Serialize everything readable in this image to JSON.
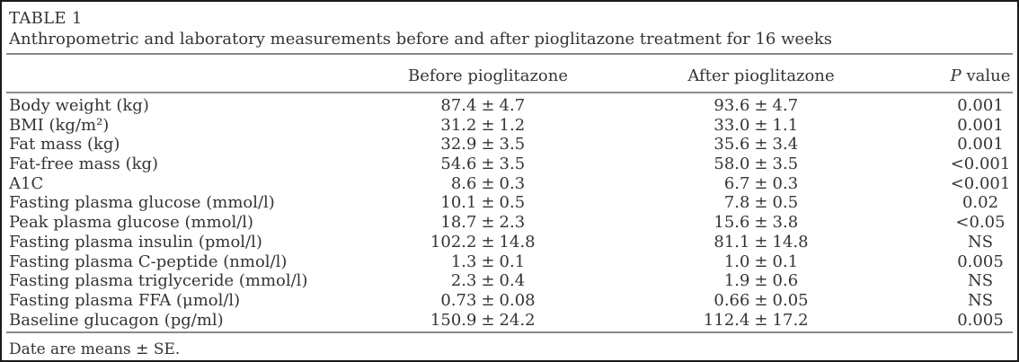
{
  "title": "TABLE 1",
  "caption": "Anthropometric and laboratory measurements before and after pioglitazone treatment for 16 weeks",
  "table": {
    "headers": {
      "before": "Before pioglitazone",
      "after": "After pioglitazone",
      "p_italic": "P",
      "p_rest": " value"
    },
    "rows": [
      {
        "label": "Body weight (kg)",
        "before": "87.4 ± 4.7",
        "after": "93.6 ± 4.7",
        "p": "0.001"
      },
      {
        "label": "BMI (kg/m²)",
        "before": "31.2 ± 1.2",
        "after": "33.0 ± 1.1",
        "p": "0.001"
      },
      {
        "label": "Fat mass (kg)",
        "before": "32.9 ± 3.5",
        "after": "35.6 ± 3.4",
        "p": "0.001"
      },
      {
        "label": "Fat-free mass (kg)",
        "before": "54.6 ± 3.5",
        "after": "58.0 ± 3.5",
        "p": "<0.001"
      },
      {
        "label": "A1C",
        "before": "8.6 ± 0.3",
        "after": "6.7 ± 0.3",
        "p": "<0.001"
      },
      {
        "label": "Fasting plasma glucose (mmol/l)",
        "before": "10.1 ± 0.5",
        "after": "7.8 ± 0.5",
        "p": "0.02"
      },
      {
        "label": "Peak plasma glucose (mmol/l)",
        "before": "18.7 ± 2.3",
        "after": "15.6 ± 3.8",
        "p": "<0.05"
      },
      {
        "label": "Fasting plasma insulin (pmol/l)",
        "before": "102.2 ± 14.8",
        "after": "81.1 ± 14.8",
        "p": "NS"
      },
      {
        "label": "Fasting plasma C-peptide (nmol/l)",
        "before": "1.3 ± 0.1",
        "after": "1.0 ± 0.1",
        "p": "0.005"
      },
      {
        "label": "Fasting plasma triglyceride (mmol/l)",
        "before": "2.3 ± 0.4",
        "after": "1.9 ± 0.6",
        "p": "NS"
      },
      {
        "label": "Fasting plasma FFA (μmol/l)",
        "before": "0.73 ± 0.08",
        "after": "0.66 ± 0.05",
        "p": "NS"
      },
      {
        "label": "Baseline glucagon (pg/ml)",
        "before": "150.9 ± 24.2",
        "after": "112.4 ± 17.2",
        "p": "0.005"
      }
    ],
    "footnote": "Date are means ± SE."
  },
  "colors": {
    "text": "#343434",
    "rule": "#8a8a8a",
    "border": "#1b1b1b",
    "background": "#ffffff"
  }
}
